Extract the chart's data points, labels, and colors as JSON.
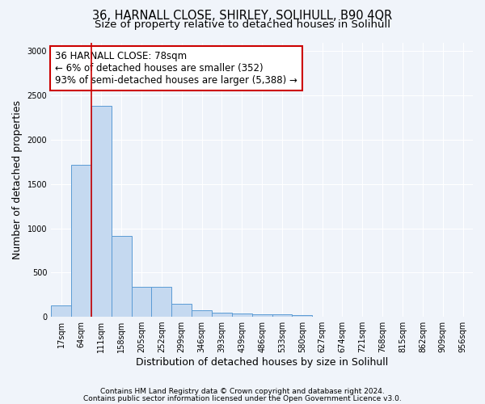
{
  "title": "36, HARNALL CLOSE, SHIRLEY, SOLIHULL, B90 4QR",
  "subtitle": "Size of property relative to detached houses in Solihull",
  "xlabel": "Distribution of detached houses by size in Solihull",
  "ylabel": "Number of detached properties",
  "categories": [
    "17sqm",
    "64sqm",
    "111sqm",
    "158sqm",
    "205sqm",
    "252sqm",
    "299sqm",
    "346sqm",
    "393sqm",
    "439sqm",
    "486sqm",
    "533sqm",
    "580sqm",
    "627sqm",
    "674sqm",
    "721sqm",
    "768sqm",
    "815sqm",
    "862sqm",
    "909sqm",
    "956sqm"
  ],
  "values": [
    130,
    1720,
    2380,
    910,
    340,
    340,
    145,
    75,
    50,
    35,
    28,
    24,
    20,
    0,
    0,
    0,
    0,
    0,
    0,
    0,
    0
  ],
  "bar_color": "#c5d9f0",
  "bar_edge_color": "#5b9bd5",
  "red_line_x": 1.5,
  "annotation_title": "36 HARNALL CLOSE: 78sqm",
  "annotation_line1": "← 6% of detached houses are smaller (352)",
  "annotation_line2": "93% of semi-detached houses are larger (5,388) →",
  "annotation_box_color": "#ffffff",
  "annotation_box_edge": "#cc0000",
  "red_line_color": "#cc0000",
  "ylim": [
    0,
    3100
  ],
  "yticks": [
    0,
    500,
    1000,
    1500,
    2000,
    2500,
    3000
  ],
  "footer1": "Contains HM Land Registry data © Crown copyright and database right 2024.",
  "footer2": "Contains public sector information licensed under the Open Government Licence v3.0.",
  "bg_color": "#f0f4fa",
  "plot_bg_color": "#f0f4fa",
  "grid_color": "#ffffff",
  "title_fontsize": 10.5,
  "subtitle_fontsize": 9.5,
  "axis_label_fontsize": 9,
  "tick_fontsize": 7,
  "footer_fontsize": 6.5
}
